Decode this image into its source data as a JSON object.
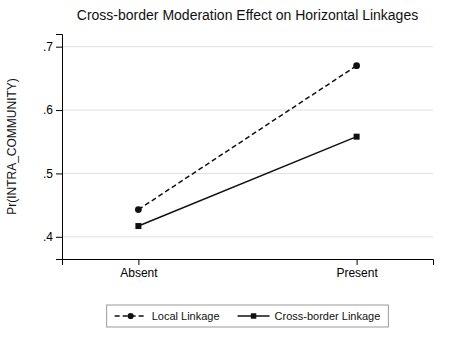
{
  "chart_data": {
    "type": "line",
    "title": "Cross-border Moderation Effect on Horizontal Linkages",
    "y_label": "Pr(INTRA_COMMUNITY)",
    "categories": [
      "Absent",
      "Present"
    ],
    "series": [
      {
        "name": "Local Linkage",
        "color": "#111111",
        "line_style": "dashed",
        "marker": "circle",
        "values": [
          0.443,
          0.67
        ]
      },
      {
        "name": "Cross-border Linkage",
        "color": "#111111",
        "line_style": "solid",
        "marker": "square",
        "values": [
          0.417,
          0.558
        ]
      }
    ],
    "ylim": [
      0.365,
      0.72
    ],
    "yticks": [
      {
        "value": 0.4,
        "label": ".4"
      },
      {
        "value": 0.5,
        "label": ".5"
      },
      {
        "value": 0.6,
        "label": ".6"
      },
      {
        "value": 0.7,
        "label": ".7"
      }
    ],
    "grid": true,
    "legend": "bottom"
  }
}
